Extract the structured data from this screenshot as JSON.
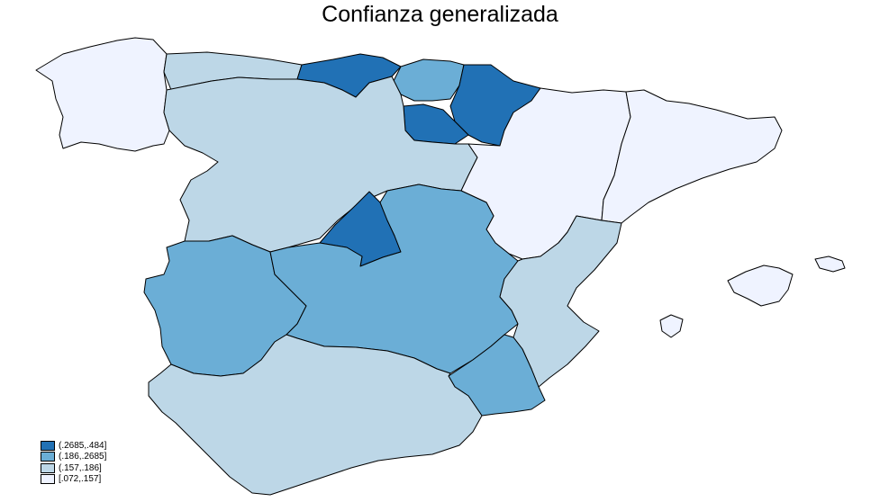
{
  "title": "Confianza generalizada",
  "legend": [
    {
      "label": "(.2685,.484]",
      "color": "#2171b5"
    },
    {
      "label": "(.186,.2685]",
      "color": "#6baed6"
    },
    {
      "label": "(.157,.186]",
      "color": "#bdd7e7"
    },
    {
      "label": "[.072,.157]",
      "color": "#eff3ff"
    }
  ],
  "regions": [
    {
      "name": "Galicia",
      "class": 3
    },
    {
      "name": "Asturias",
      "class": 2
    },
    {
      "name": "Cantabria",
      "class": 0
    },
    {
      "name": "País Vasco",
      "class": 1
    },
    {
      "name": "Navarra",
      "class": 0
    },
    {
      "name": "La Rioja",
      "class": 0
    },
    {
      "name": "Aragón",
      "class": 3
    },
    {
      "name": "Cataluña",
      "class": 3
    },
    {
      "name": "Castilla y León",
      "class": 2
    },
    {
      "name": "Madrid",
      "class": 0
    },
    {
      "name": "Extremadura",
      "class": 1
    },
    {
      "name": "Castilla-La Mancha",
      "class": 1
    },
    {
      "name": "Comunidad Valenciana",
      "class": 2
    },
    {
      "name": "Murcia",
      "class": 1
    },
    {
      "name": "Andalucía",
      "class": 2
    },
    {
      "name": "Islas Baleares",
      "class": 3
    }
  ]
}
